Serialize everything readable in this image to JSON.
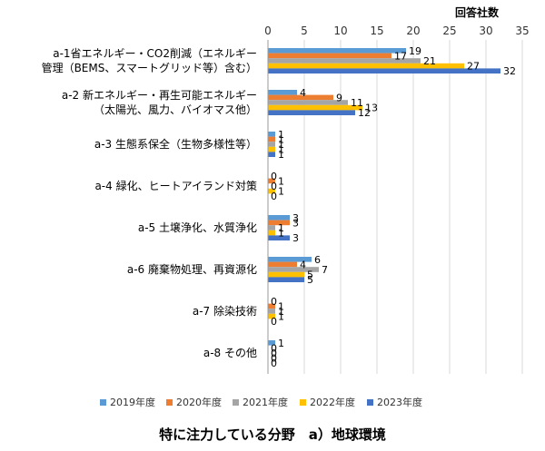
{
  "caption": "特に注力している分野　a）地球環境",
  "chart_data": {
    "type": "bar",
    "orientation": "horizontal",
    "unit_label": "回答社数",
    "xlim": [
      0,
      35
    ],
    "ticks": [
      0,
      5,
      10,
      15,
      20,
      25,
      30,
      35
    ],
    "grid": true,
    "legend_position": "bottom",
    "categories": [
      [
        "a-1省エネルギー・CO2削減（エネルギー",
        "管理（BEMS、スマートグリッド等）含む）"
      ],
      [
        "a-2 新エネルギー・再生可能エネルギー",
        "（太陽光、風力、バイオマス他）"
      ],
      [
        "a-3 生態系保全（生物多様性等）"
      ],
      [
        "a-4 緑化、ヒートアイランド対策"
      ],
      [
        "a-5 土壌浄化、水質浄化"
      ],
      [
        "a-6 廃棄物処理、再資源化"
      ],
      [
        "a-7 除染技術"
      ],
      [
        "a-8 その他"
      ]
    ],
    "series": [
      {
        "name": "2019年度",
        "color": "#5b9bd5",
        "values": [
          19,
          4,
          1,
          0,
          3,
          6,
          0,
          1
        ]
      },
      {
        "name": "2020年度",
        "color": "#ed7d31",
        "values": [
          17,
          9,
          1,
          1,
          3,
          4,
          1,
          0
        ]
      },
      {
        "name": "2021年度",
        "color": "#a5a5a5",
        "values": [
          21,
          11,
          1,
          0,
          1,
          7,
          1,
          0
        ]
      },
      {
        "name": "2022年度",
        "color": "#ffc000",
        "values": [
          27,
          13,
          1,
          1,
          1,
          5,
          1,
          0
        ]
      },
      {
        "name": "2023年度",
        "color": "#4472c4",
        "values": [
          32,
          12,
          1,
          0,
          3,
          5,
          0,
          0
        ]
      }
    ]
  }
}
